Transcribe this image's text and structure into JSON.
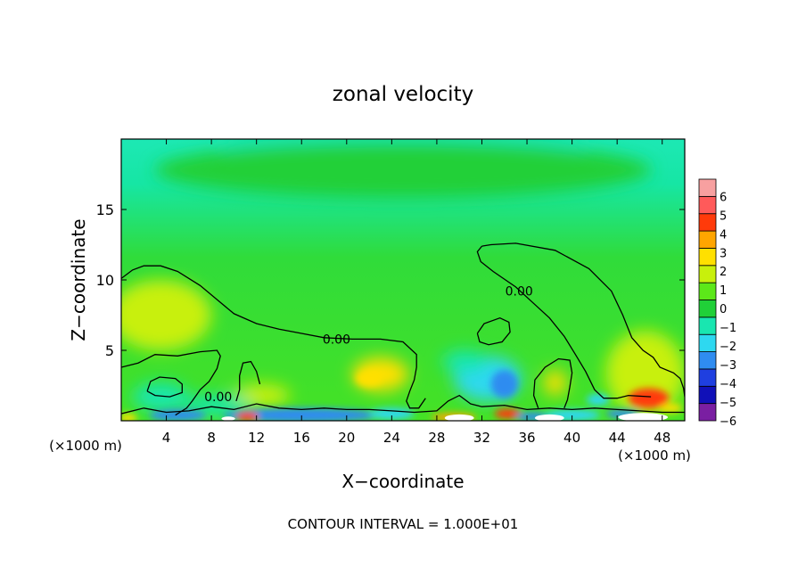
{
  "chart_data": {
    "type": "heatmap",
    "title": "zonal velocity",
    "xlabel": "X−coordinate",
    "ylabel": "Z−coordinate",
    "x_unit_left": "(×1000 m)",
    "x_unit_right": "(×1000 m)",
    "footer": "CONTOUR INTERVAL = 1.000E+01",
    "xlim": [
      0,
      50
    ],
    "ylim": [
      0,
      20
    ],
    "x_ticks": [
      4,
      8,
      12,
      16,
      20,
      24,
      28,
      32,
      36,
      40,
      44,
      48
    ],
    "x_tick_labels": [
      "4",
      "8",
      "12",
      "16",
      "20",
      "24",
      "28",
      "32",
      "36",
      "40",
      "44",
      "48"
    ],
    "y_ticks": [
      5,
      10,
      15
    ],
    "y_tick_labels": [
      "5",
      "10",
      "15"
    ],
    "colorbar": {
      "levels": [
        -6,
        -5,
        -4,
        -3,
        -2,
        -1,
        0,
        1,
        2,
        3,
        4,
        5,
        6
      ],
      "labels": [
        "−6",
        "−5",
        "−4",
        "−3",
        "−2",
        "−1",
        "0",
        "1",
        "2",
        "3",
        "4",
        "5",
        "6"
      ],
      "colors": [
        "#7a1fa2",
        "#1010b8",
        "#1f3fe0",
        "#2f8cf0",
        "#2ed8f0",
        "#19e6b0",
        "#20d038",
        "#5ce819",
        "#c8f00c",
        "#ffe000",
        "#ffa500",
        "#ff3a0a",
        "#ff5a5a",
        "#f7a0a0"
      ]
    },
    "contour_labels": [
      {
        "text": "0.00",
        "x": 19.1,
        "y": 5.8
      },
      {
        "text": "0.00",
        "x": 35.3,
        "y": 9.2
      },
      {
        "text": "0.00",
        "x": 8.6,
        "y": 1.7
      }
    ],
    "contours": [
      {
        "name": "upper-west",
        "points": [
          [
            0,
            10.1
          ],
          [
            1,
            10.7
          ],
          [
            2,
            11.0
          ],
          [
            3.5,
            11.0
          ],
          [
            5,
            10.6
          ],
          [
            7,
            9.6
          ],
          [
            8.8,
            8.4
          ],
          [
            10,
            7.6
          ],
          [
            12,
            6.9
          ],
          [
            14,
            6.5
          ],
          [
            16,
            6.2
          ],
          [
            18,
            5.9
          ],
          [
            20.5,
            5.8
          ],
          [
            23,
            5.8
          ],
          [
            25,
            5.6
          ],
          [
            26.2,
            4.7
          ],
          [
            26.2,
            3.8
          ],
          [
            26,
            2.9
          ],
          [
            25.6,
            2.1
          ],
          [
            25.3,
            1.4
          ],
          [
            25.6,
            0.9
          ],
          [
            26.4,
            0.9
          ],
          [
            27,
            1.6
          ]
        ]
      },
      {
        "name": "upper-east",
        "points": [
          [
            32,
            12.4
          ],
          [
            32.8,
            12.5
          ],
          [
            35,
            12.6
          ],
          [
            38.5,
            12.1
          ],
          [
            41.5,
            10.8
          ],
          [
            43.5,
            9.2
          ],
          [
            44.5,
            7.5
          ],
          [
            45.3,
            5.9
          ],
          [
            46.3,
            5.0
          ],
          [
            47.2,
            4.5
          ],
          [
            47.8,
            3.8
          ],
          [
            49,
            3.4
          ],
          [
            49.6,
            3.0
          ],
          [
            49.9,
            2.3
          ],
          [
            50,
            1.7
          ]
        ]
      },
      {
        "name": "upper-east-left",
        "points": [
          [
            32,
            12.4
          ],
          [
            31.6,
            12.0
          ],
          [
            31.9,
            11.3
          ],
          [
            33,
            10.6
          ],
          [
            35,
            9.5
          ],
          [
            36.5,
            8.4
          ],
          [
            38,
            7.3
          ],
          [
            39.3,
            6.0
          ],
          [
            40.3,
            4.7
          ],
          [
            41.2,
            3.5
          ],
          [
            42,
            2.2
          ],
          [
            42.8,
            1.6
          ],
          [
            44,
            1.6
          ],
          [
            45,
            1.8
          ],
          [
            47,
            1.7
          ]
        ]
      },
      {
        "name": "lower-west",
        "points": [
          [
            0,
            3.8
          ],
          [
            1.5,
            4.1
          ],
          [
            3,
            4.7
          ],
          [
            5,
            4.6
          ],
          [
            7,
            4.9
          ],
          [
            8.5,
            5.0
          ],
          [
            8.8,
            4.6
          ],
          [
            8.5,
            3.7
          ],
          [
            7.8,
            2.8
          ],
          [
            7,
            2.2
          ],
          [
            6.3,
            1.4
          ],
          [
            5.8,
            0.9
          ],
          [
            5.2,
            0.6
          ],
          [
            4.8,
            0.4
          ]
        ]
      },
      {
        "name": "island-west",
        "points": [
          [
            2.3,
            2.1
          ],
          [
            3,
            1.8
          ],
          [
            4.3,
            1.7
          ],
          [
            5.4,
            2.0
          ],
          [
            5.4,
            2.6
          ],
          [
            4.8,
            3.0
          ],
          [
            3.4,
            3.1
          ],
          [
            2.6,
            2.8
          ],
          [
            2.3,
            2.1
          ]
        ]
      },
      {
        "name": "island-mid",
        "points": [
          [
            31.6,
            6.2
          ],
          [
            32.2,
            6.9
          ],
          [
            33.6,
            7.3
          ],
          [
            34.4,
            7.0
          ],
          [
            34.5,
            6.3
          ],
          [
            33.8,
            5.6
          ],
          [
            32.6,
            5.4
          ],
          [
            31.8,
            5.6
          ],
          [
            31.6,
            6.2
          ]
        ]
      },
      {
        "name": "lower-mid",
        "points": [
          [
            37,
            0.9
          ],
          [
            36.6,
            1.8
          ],
          [
            36.7,
            2.9
          ],
          [
            37.6,
            3.8
          ],
          [
            38.8,
            4.4
          ],
          [
            39.8,
            4.3
          ],
          [
            40,
            3.4
          ],
          [
            39.8,
            2.4
          ],
          [
            39.6,
            1.5
          ],
          [
            39.3,
            0.9
          ]
        ]
      },
      {
        "name": "lower-midwest",
        "points": [
          [
            10.2,
            1.4
          ],
          [
            10.5,
            2.2
          ],
          [
            10.5,
            3.2
          ],
          [
            10.8,
            4.1
          ],
          [
            11.5,
            4.2
          ],
          [
            12,
            3.5
          ],
          [
            12.3,
            2.6
          ]
        ]
      },
      {
        "name": "surface",
        "points": [
          [
            0,
            0.5
          ],
          [
            2,
            0.9
          ],
          [
            4,
            0.6
          ],
          [
            6,
            0.7
          ],
          [
            8,
            1.0
          ],
          [
            10,
            0.8
          ],
          [
            12,
            1.2
          ],
          [
            14,
            0.9
          ],
          [
            16,
            0.8
          ],
          [
            18,
            0.9
          ],
          [
            20,
            0.8
          ],
          [
            22,
            0.8
          ],
          [
            24,
            0.7
          ],
          [
            26,
            0.6
          ],
          [
            28,
            0.7
          ],
          [
            29,
            1.4
          ],
          [
            30,
            1.8
          ],
          [
            31,
            1.2
          ],
          [
            32,
            1.0
          ],
          [
            34,
            1.1
          ],
          [
            36,
            0.8
          ],
          [
            38,
            0.9
          ],
          [
            40,
            0.8
          ],
          [
            42,
            0.9
          ],
          [
            44,
            0.8
          ],
          [
            46,
            0.7
          ],
          [
            48,
            0.6
          ],
          [
            50,
            0.6
          ]
        ]
      }
    ],
    "features": [
      {
        "x": 25.0,
        "y": 19.5,
        "rx": 16,
        "ry": 2.5,
        "value": -1.6
      },
      {
        "x": 25.0,
        "y": 17.8,
        "rx": 22,
        "ry": 2.0,
        "value": -0.9
      },
      {
        "x": 3.5,
        "y": 7.5,
        "rx": 4.5,
        "ry": 2.5,
        "value": 1.1
      },
      {
        "x": 46.5,
        "y": 3.4,
        "rx": 3.5,
        "ry": 3.0,
        "value": 1.3
      },
      {
        "x": 23.0,
        "y": 3.3,
        "rx": 2.5,
        "ry": 1.2,
        "value": 2.4
      },
      {
        "x": 22.0,
        "y": 3.0,
        "rx": 1.2,
        "ry": 0.6,
        "value": 2.8
      },
      {
        "x": 12.5,
        "y": 1.8,
        "rx": 2.5,
        "ry": 0.8,
        "value": 1.9
      },
      {
        "x": 32.5,
        "y": 3.0,
        "rx": 3.0,
        "ry": 1.6,
        "value": -2.3
      },
      {
        "x": 34.0,
        "y": 2.6,
        "rx": 1.2,
        "ry": 1.0,
        "value": -3.6
      },
      {
        "x": 30.5,
        "y": 4.2,
        "rx": 2.0,
        "ry": 0.8,
        "value": -1.2
      },
      {
        "x": 3.5,
        "y": 1.7,
        "rx": 2.5,
        "ry": 1.0,
        "value": -1.9
      },
      {
        "x": 8.5,
        "y": 1.1,
        "rx": 3.0,
        "ry": 0.7,
        "value": -1.7
      },
      {
        "x": 38.5,
        "y": 2.7,
        "rx": 1.0,
        "ry": 0.9,
        "value": 2.1
      },
      {
        "x": 46.8,
        "y": 1.6,
        "rx": 1.8,
        "ry": 0.7,
        "value": 4.2
      },
      {
        "x": 46.5,
        "y": 1.7,
        "rx": 0.9,
        "ry": 0.4,
        "value": 5.0
      },
      {
        "x": 42.3,
        "y": 1.5,
        "rx": 1.0,
        "ry": 0.4,
        "value": -2.2
      },
      {
        "x": 16.0,
        "y": 0.4,
        "rx": 7.0,
        "ry": 0.5,
        "value": -3.8
      },
      {
        "x": 5.0,
        "y": 0.4,
        "rx": 2.5,
        "ry": 0.4,
        "value": -3.0
      },
      {
        "x": 11.2,
        "y": 0.3,
        "rx": 1.0,
        "ry": 0.3,
        "value": 4.5
      },
      {
        "x": 29.5,
        "y": 0.25,
        "rx": 2.0,
        "ry": 0.3,
        "value": 4.0
      },
      {
        "x": 34.3,
        "y": 0.5,
        "rx": 1.2,
        "ry": 0.35,
        "value": 4.8
      },
      {
        "x": 36.5,
        "y": 0.3,
        "rx": 1.5,
        "ry": 0.3,
        "value": -3.5
      },
      {
        "x": 40.0,
        "y": 0.4,
        "rx": 2.5,
        "ry": 0.4,
        "value": -2.6
      },
      {
        "x": 44.5,
        "y": 0.5,
        "rx": 1.5,
        "ry": 0.3,
        "value": -3.2
      },
      {
        "x": 48.8,
        "y": 0.9,
        "rx": 1.0,
        "ry": 0.3,
        "value": 2.6
      },
      {
        "x": 24.0,
        "y": 0.5,
        "rx": 2.0,
        "ry": 0.4,
        "value": -2.8
      },
      {
        "x": 0.6,
        "y": 0.2,
        "rx": 0.8,
        "ry": 0.3,
        "value": 2.5
      }
    ],
    "blanks": [
      {
        "x": 46.3,
        "y": 0.25,
        "rx": 2.2,
        "ry": 0.3
      },
      {
        "x": 38.0,
        "y": 0.2,
        "rx": 1.3,
        "ry": 0.25
      },
      {
        "x": 30.0,
        "y": 0.2,
        "rx": 1.3,
        "ry": 0.25
      },
      {
        "x": 9.5,
        "y": 0.15,
        "rx": 0.6,
        "ry": 0.15
      }
    ]
  }
}
